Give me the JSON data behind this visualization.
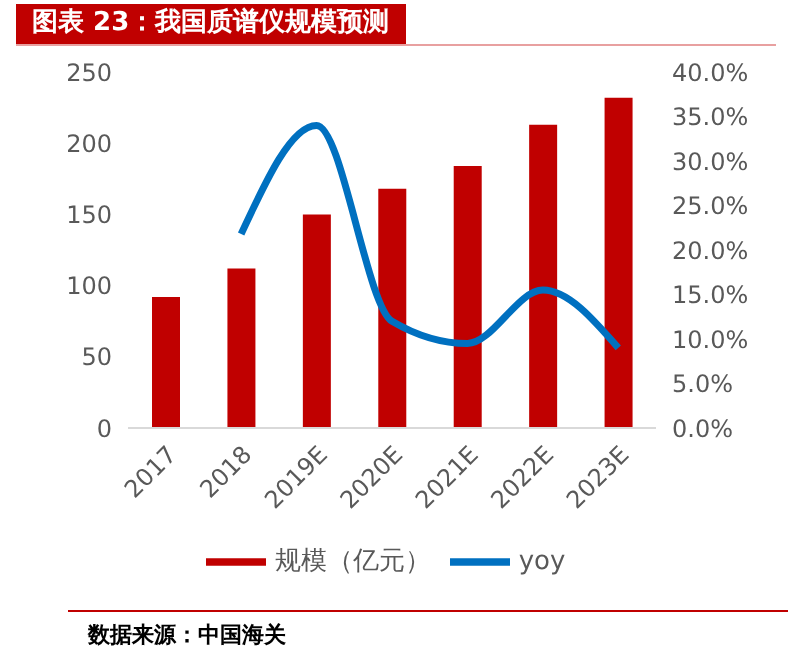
{
  "chart_data": {
    "type": "bar",
    "title": "图表 23：我国质谱仪规模预测",
    "categories": [
      "2017",
      "2018",
      "2019E",
      "2020E",
      "2021E",
      "2022E",
      "2023E"
    ],
    "series": [
      {
        "name": "规模（亿元）",
        "color": "#c00000",
        "values": [
          92,
          112,
          150,
          168,
          184,
          213,
          232
        ]
      },
      {
        "name": "yoy",
        "type": "line",
        "axis": "y2",
        "color": "#0070c0",
        "values": [
          null,
          21.8,
          34,
          12,
          9.5,
          15.5,
          9
        ]
      }
    ],
    "ylim": [
      0,
      250
    ],
    "yticks": [
      0,
      50,
      100,
      150,
      200,
      250
    ],
    "y2lim": [
      0,
      40
    ],
    "y2ticks": [
      {
        "value": 0,
        "label": "0.0%"
      },
      {
        "value": 5,
        "label": "5.0%"
      },
      {
        "value": 10,
        "label": "10.0%"
      },
      {
        "value": 15,
        "label": "15.0%"
      },
      {
        "value": 20,
        "label": "20.0%"
      },
      {
        "value": 25,
        "label": "25.0%"
      },
      {
        "value": 30,
        "label": "30.0%"
      },
      {
        "value": 35,
        "label": "35.0%"
      },
      {
        "value": 40,
        "label": "40.0%"
      }
    ],
    "marker": "none",
    "grid": false,
    "legend": "bottom",
    "annotations": [
      "数据来源：中国海关"
    ]
  }
}
